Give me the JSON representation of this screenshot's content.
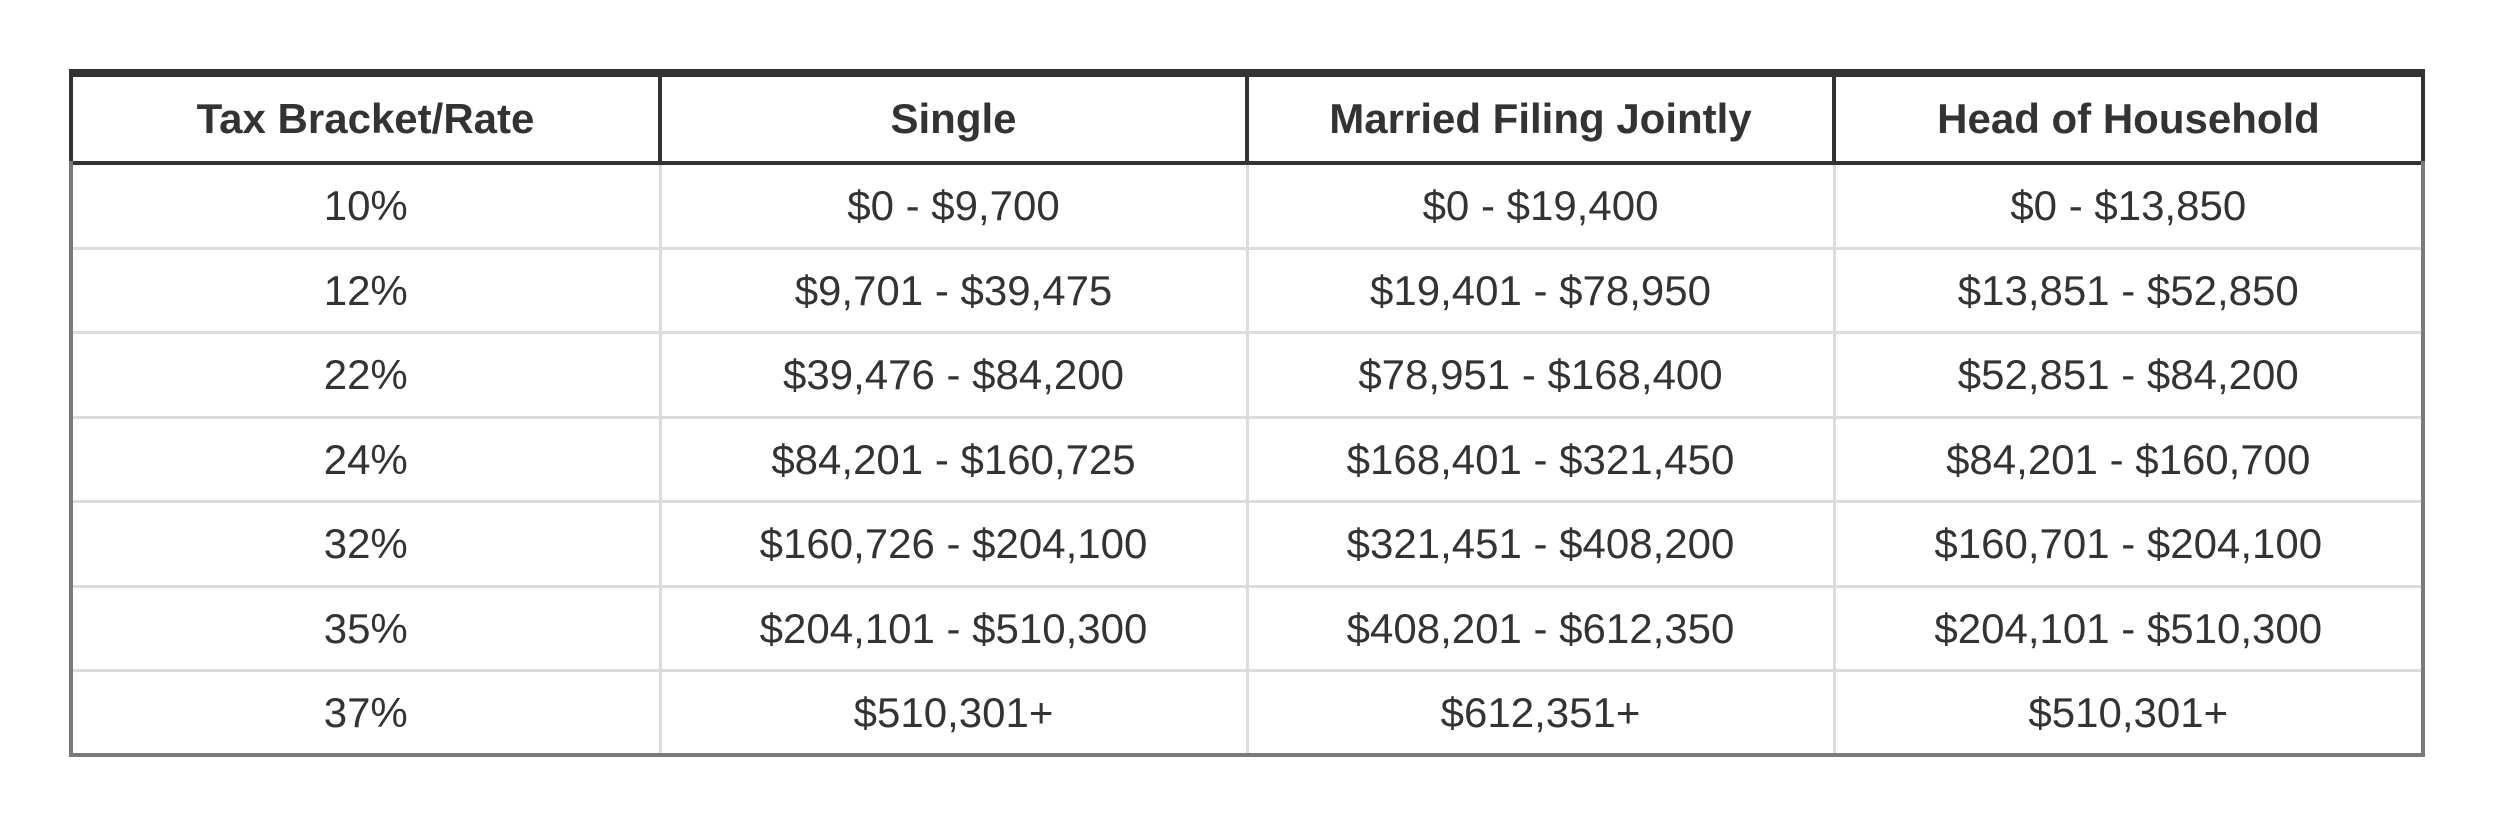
{
  "table": {
    "headers": [
      "Tax Bracket/Rate",
      "Single",
      "Married Filing Jointly",
      "Head of Household"
    ],
    "rows": [
      [
        "10%",
        "$0 - $9,700",
        "$0 - $19,400",
        "$0 - $13,850"
      ],
      [
        "12%",
        "$9,701 - $39,475",
        "$19,401 - $78,950",
        "$13,851 - $52,850"
      ],
      [
        "22%",
        "$39,476 - $84,200",
        "$78,951 - $168,400",
        "$52,851 - $84,200"
      ],
      [
        "24%",
        "$84,201 - $160,725",
        "$168,401 - $321,450",
        "$84,201 - $160,700"
      ],
      [
        "32%",
        "$160,726 - $204,100",
        "$321,451 - $408,200",
        "$160,701 - $204,100"
      ],
      [
        "35%",
        "$204,101 - $510,300",
        "$408,201 - $612,350",
        "$204,101 - $510,300"
      ],
      [
        "37%",
        "$510,301+",
        "$612,351+",
        "$510,301+"
      ]
    ]
  },
  "colors": {
    "text": "#333333",
    "header_border": "#333333",
    "outer_border": "#7a7a7a",
    "grid": "#dcdcdc"
  }
}
